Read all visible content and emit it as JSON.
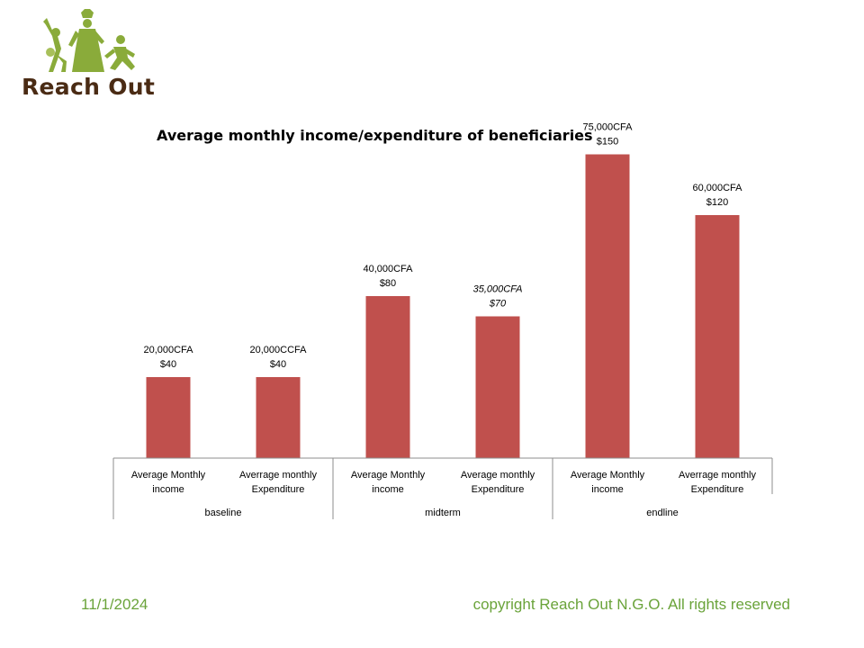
{
  "brand": {
    "name": "Reach Out",
    "brown": "#4a2b14",
    "green": "#8aab3a"
  },
  "footer": {
    "date": "11/1/2024",
    "copyright": "copyright Reach Out N.G.O. All rights reserved",
    "color": "#6aa33a"
  },
  "chart_data": {
    "type": "bar",
    "title": "Average monthly income/expenditure of beneficiaries",
    "bar_color": "#c0504d",
    "categories": [
      [
        "Average Monthly",
        "income"
      ],
      [
        "Averrage monthly",
        "Expenditure"
      ],
      [
        "Average Monthly",
        "income"
      ],
      [
        "Average monthly",
        "Expenditure"
      ],
      [
        "Average Monthly",
        "income"
      ],
      [
        "Averrage monthly",
        "Expenditure"
      ]
    ],
    "groups": [
      "baseline",
      "midterm",
      "endline"
    ],
    "values": [
      40,
      40,
      80,
      70,
      150,
      120
    ],
    "value_unit": "$",
    "data_labels": [
      [
        "20,000CFA",
        "$40"
      ],
      [
        "20,000CCFA",
        "$40"
      ],
      [
        "40,000CFA",
        "$80"
      ],
      [
        "35,000CFA",
        "$70"
      ],
      [
        "75,000CFA",
        "$150"
      ],
      [
        "60,000CFA",
        "$120"
      ]
    ],
    "italic_labels": [
      false,
      false,
      false,
      true,
      false,
      false
    ],
    "ylim": [
      0,
      160
    ],
    "grid": false,
    "legend": "none"
  }
}
